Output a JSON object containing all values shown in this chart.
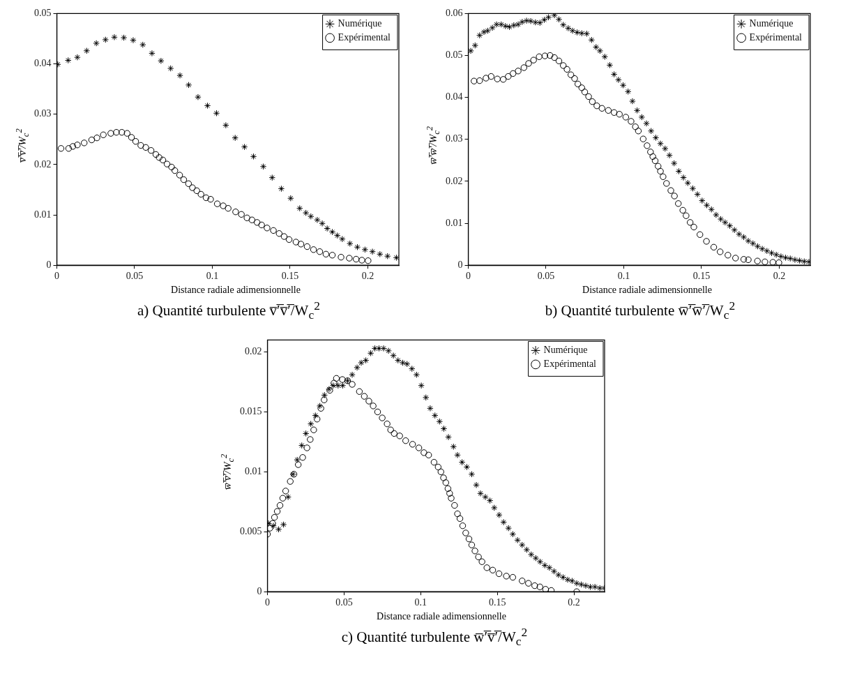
{
  "chart_data": [
    {
      "type": "scatter",
      "title": "a)  Quantité turbulente v̅′̅v̅′̅/W$_{c}$$^{2}$",
      "xlabel": "Distance radiale adimensionnelle",
      "ylabel": "v̅′̅v̅′̅/W$_{c}$$^{2}$",
      "xlim": [
        0,
        0.22
      ],
      "xticks": [
        0,
        0.05,
        0.1,
        0.15,
        0.2
      ],
      "ylim": [
        0,
        0.05
      ],
      "yticks": [
        0,
        0.01,
        0.02,
        0.03,
        0.04,
        0.05
      ],
      "grid": false,
      "legend": "top right",
      "series": [
        {
          "name": "Numérique",
          "color": "#000000",
          "marker": "cross",
          "x": [
            0.0006,
            0.0073,
            0.0132,
            0.0192,
            0.0254,
            0.0313,
            0.037,
            0.0431,
            0.0491,
            0.0553,
            0.0612,
            0.067,
            0.0732,
            0.0792,
            0.0848,
            0.0908,
            0.0969,
            0.1027,
            0.1087,
            0.1147,
            0.1207,
            0.1265,
            0.1328,
            0.1385,
            0.1444,
            0.1504,
            0.1562,
            0.1602,
            0.1634,
            0.1675,
            0.1707,
            0.1739,
            0.1772,
            0.1804,
            0.1836,
            0.1885,
            0.1933,
            0.1982,
            0.203,
            0.2078,
            0.2127,
            0.2184
          ],
          "values": [
            0.0399,
            0.0407,
            0.0413,
            0.0426,
            0.0441,
            0.0448,
            0.0453,
            0.0452,
            0.0447,
            0.0438,
            0.0421,
            0.0406,
            0.0391,
            0.0377,
            0.0358,
            0.0334,
            0.0317,
            0.0302,
            0.0278,
            0.0253,
            0.0235,
            0.0216,
            0.0196,
            0.0174,
            0.0152,
            0.0133,
            0.0113,
            0.0104,
            0.0097,
            0.009,
            0.0083,
            0.0073,
            0.0066,
            0.0059,
            0.0052,
            0.0043,
            0.0036,
            0.0031,
            0.0027,
            0.0022,
            0.0018,
            0.0015
          ]
        },
        {
          "name": "Expérimental",
          "color": "#000000",
          "marker": "circle",
          "x": [
            0.0027,
            0.0076,
            0.0103,
            0.0132,
            0.0176,
            0.0224,
            0.0258,
            0.0299,
            0.0347,
            0.0383,
            0.0418,
            0.0452,
            0.048,
            0.0507,
            0.054,
            0.0572,
            0.0606,
            0.0637,
            0.0658,
            0.0682,
            0.0709,
            0.0738,
            0.0759,
            0.079,
            0.0816,
            0.0847,
            0.0872,
            0.09,
            0.0927,
            0.096,
            0.0989,
            0.1032,
            0.107,
            0.1102,
            0.115,
            0.1187,
            0.1223,
            0.1255,
            0.1288,
            0.1317,
            0.1352,
            0.1393,
            0.143,
            0.1462,
            0.1494,
            0.1538,
            0.157,
            0.161,
            0.1651,
            0.1691,
            0.1731,
            0.1772,
            0.1828,
            0.1881,
            0.1925,
            0.1962,
            0.2002
          ],
          "values": [
            0.0232,
            0.0232,
            0.0236,
            0.0239,
            0.0243,
            0.0249,
            0.0253,
            0.0259,
            0.0262,
            0.0264,
            0.0264,
            0.0262,
            0.0254,
            0.0246,
            0.0238,
            0.0234,
            0.0228,
            0.022,
            0.0214,
            0.0209,
            0.0201,
            0.0195,
            0.0188,
            0.0179,
            0.017,
            0.0162,
            0.0154,
            0.0148,
            0.0141,
            0.0134,
            0.0131,
            0.0122,
            0.0118,
            0.0113,
            0.0106,
            0.0101,
            0.0094,
            0.009,
            0.0085,
            0.008,
            0.0074,
            0.0069,
            0.0063,
            0.0057,
            0.0051,
            0.0046,
            0.0042,
            0.0037,
            0.0031,
            0.0027,
            0.0022,
            0.002,
            0.0016,
            0.0014,
            0.0012,
            0.001,
            0.0009
          ]
        }
      ]
    },
    {
      "type": "scatter",
      "title": "b)  Quantité turbulente w̅′̅w̅′̅/W$_{c}$$^{2}$",
      "xlabel": "Distance radiale adimensionnelle",
      "ylabel": "w̅′̅w̅′̅/W$_{c}$$^{2}$",
      "xlim": [
        0,
        0.22
      ],
      "xticks": [
        0,
        0.05,
        0.1,
        0.15,
        0.2
      ],
      "ylim": [
        0,
        0.06
      ],
      "yticks": [
        0,
        0.01,
        0.02,
        0.03,
        0.04,
        0.05,
        0.06
      ],
      "grid": false,
      "legend": "top right",
      "series": [
        {
          "name": "Numérique",
          "color": "#000000",
          "marker": "cross",
          "x": [
            0.0016,
            0.0044,
            0.0073,
            0.0101,
            0.0125,
            0.0155,
            0.0182,
            0.0212,
            0.0239,
            0.0265,
            0.0293,
            0.0321,
            0.0347,
            0.0375,
            0.0402,
            0.0432,
            0.0461,
            0.0489,
            0.0516,
            0.0554,
            0.0583,
            0.0611,
            0.0643,
            0.0671,
            0.07,
            0.073,
            0.0762,
            0.0793,
            0.0822,
            0.0847,
            0.0878,
            0.091,
            0.0938,
            0.0966,
            0.0996,
            0.1028,
            0.1056,
            0.1086,
            0.1116,
            0.1146,
            0.1176,
            0.1206,
            0.1236,
            0.1266,
            0.1294,
            0.1324,
            0.1354,
            0.1384,
            0.1412,
            0.1444,
            0.1474,
            0.1504,
            0.1534,
            0.1564,
            0.1594,
            0.1624,
            0.1652,
            0.1682,
            0.1712,
            0.1742,
            0.1772,
            0.1801,
            0.1831,
            0.1861,
            0.1891,
            0.1921,
            0.1951,
            0.1981,
            0.2011,
            0.2041,
            0.2071,
            0.2101,
            0.2131,
            0.2161,
            0.2191
          ],
          "values": [
            0.0511,
            0.0524,
            0.0548,
            0.0556,
            0.0559,
            0.0566,
            0.0574,
            0.0574,
            0.057,
            0.0568,
            0.0572,
            0.0574,
            0.058,
            0.0583,
            0.0582,
            0.0579,
            0.0578,
            0.0585,
            0.0591,
            0.0596,
            0.0586,
            0.0573,
            0.0565,
            0.0559,
            0.0555,
            0.0553,
            0.0552,
            0.0537,
            0.052,
            0.0511,
            0.0497,
            0.0477,
            0.0455,
            0.0442,
            0.0429,
            0.0414,
            0.0391,
            0.0369,
            0.0353,
            0.0338,
            0.032,
            0.0304,
            0.029,
            0.0278,
            0.0262,
            0.0243,
            0.0224,
            0.0209,
            0.0196,
            0.0183,
            0.0169,
            0.0154,
            0.0143,
            0.0133,
            0.012,
            0.011,
            0.0102,
            0.0094,
            0.0084,
            0.0074,
            0.0067,
            0.0058,
            0.0052,
            0.0045,
            0.0039,
            0.0034,
            0.0029,
            0.0025,
            0.0021,
            0.0018,
            0.0016,
            0.0013,
            0.0011,
            0.0009,
            0.0008
          ]
        },
        {
          "name": "Expérimental",
          "color": "#000000",
          "marker": "circle",
          "x": [
            0.0037,
            0.0073,
            0.0114,
            0.0147,
            0.0187,
            0.0225,
            0.0257,
            0.0288,
            0.0321,
            0.0358,
            0.0388,
            0.042,
            0.0456,
            0.0493,
            0.0526,
            0.0554,
            0.0583,
            0.0611,
            0.0635,
            0.066,
            0.0684,
            0.0705,
            0.073,
            0.0749,
            0.0774,
            0.0798,
            0.0827,
            0.086,
            0.0901,
            0.0938,
            0.0972,
            0.1013,
            0.1047,
            0.1075,
            0.1094,
            0.1125,
            0.115,
            0.1172,
            0.1187,
            0.1202,
            0.1221,
            0.1236,
            0.1253,
            0.1275,
            0.1303,
            0.1326,
            0.1351,
            0.138,
            0.1401,
            0.1427,
            0.1451,
            0.149,
            0.1532,
            0.1579,
            0.162,
            0.167,
            0.1719,
            0.1772,
            0.1801,
            0.186,
            0.1908,
            0.1959,
            0.1998
          ],
          "values": [
            0.0439,
            0.044,
            0.0446,
            0.045,
            0.0444,
            0.0443,
            0.045,
            0.0457,
            0.0463,
            0.0471,
            0.0481,
            0.0489,
            0.0497,
            0.0499,
            0.05,
            0.0495,
            0.0487,
            0.0476,
            0.0467,
            0.0454,
            0.0445,
            0.0432,
            0.0423,
            0.0413,
            0.0402,
            0.039,
            0.038,
            0.0374,
            0.0369,
            0.0364,
            0.036,
            0.0353,
            0.0343,
            0.033,
            0.032,
            0.0301,
            0.0285,
            0.027,
            0.0259,
            0.0249,
            0.0236,
            0.0224,
            0.0211,
            0.0195,
            0.0178,
            0.0165,
            0.0147,
            0.0131,
            0.0118,
            0.0102,
            0.0091,
            0.0073,
            0.0057,
            0.0043,
            0.0032,
            0.0024,
            0.0017,
            0.0014,
            0.0013,
            0.001,
            0.0008,
            0.0007,
            0.0006
          ]
        }
      ]
    },
    {
      "type": "scatter",
      "title": "c)  Quantité turbulente w̅′̅v̅′̅/W$_{c}$$^{2}$",
      "xlabel": "Distance radiale adimensionnelle",
      "ylabel": "w̅′̅v̅′̅/W$_{c}$$^{2}$",
      "xlim": [
        0,
        0.22
      ],
      "xticks": [
        0,
        0.05,
        0.1,
        0.15,
        0.2
      ],
      "ylim": [
        0,
        0.021
      ],
      "yticks": [
        0,
        0.005,
        0.01,
        0.015,
        0.02
      ],
      "grid": false,
      "legend": "top right",
      "series": [
        {
          "name": "Numérique",
          "color": "#000000",
          "marker": "cross",
          "x": [
            0.0007,
            0.0039,
            0.0073,
            0.0105,
            0.0135,
            0.0167,
            0.0194,
            0.0224,
            0.0251,
            0.0283,
            0.0313,
            0.0342,
            0.0372,
            0.0402,
            0.0429,
            0.0461,
            0.0491,
            0.0523,
            0.0553,
            0.0585,
            0.0612,
            0.0642,
            0.0674,
            0.0701,
            0.0728,
            0.0758,
            0.079,
            0.0822,
            0.0852,
            0.0883,
            0.0911,
            0.0943,
            0.0973,
            0.1004,
            0.1034,
            0.1062,
            0.1093,
            0.1123,
            0.1151,
            0.1181,
            0.1214,
            0.124,
            0.127,
            0.1301,
            0.1333,
            0.1363,
            0.139,
            0.1422,
            0.1452,
            0.148,
            0.1512,
            0.1541,
            0.1573,
            0.1601,
            0.1632,
            0.1662,
            0.1692,
            0.1721,
            0.1751,
            0.1779,
            0.181,
            0.184,
            0.187,
            0.1899,
            0.1929,
            0.1959,
            0.1988,
            0.2018,
            0.2048,
            0.2077,
            0.2107,
            0.2137,
            0.2169,
            0.2199
          ],
          "values": [
            0.0057,
            0.0055,
            0.0052,
            0.0056,
            0.0079,
            0.0098,
            0.011,
            0.0122,
            0.0132,
            0.014,
            0.0147,
            0.0155,
            0.0164,
            0.0169,
            0.0172,
            0.0172,
            0.0172,
            0.0176,
            0.0181,
            0.0187,
            0.0191,
            0.0193,
            0.0199,
            0.0203,
            0.0203,
            0.0203,
            0.0201,
            0.0197,
            0.0193,
            0.0191,
            0.019,
            0.0186,
            0.0181,
            0.0172,
            0.0162,
            0.0153,
            0.0147,
            0.0142,
            0.0136,
            0.0129,
            0.0121,
            0.0114,
            0.0108,
            0.0104,
            0.0098,
            0.0089,
            0.0082,
            0.0079,
            0.0076,
            0.007,
            0.0064,
            0.0058,
            0.0053,
            0.0048,
            0.0043,
            0.0039,
            0.0035,
            0.0031,
            0.0028,
            0.0025,
            0.0022,
            0.002,
            0.0017,
            0.0014,
            0.0012,
            0.001,
            0.0009,
            0.0007,
            0.0006,
            0.0005,
            0.0004,
            0.0004,
            0.0003,
            0.0003
          ]
        },
        {
          "name": "Expérimental",
          "color": "#000000",
          "marker": "circle",
          "x": [
            0,
            0.0016,
            0.0034,
            0.0046,
            0.0064,
            0.0082,
            0.01,
            0.0119,
            0.0149,
            0.0173,
            0.0201,
            0.023,
            0.0258,
            0.0279,
            0.0302,
            0.0324,
            0.0349,
            0.037,
            0.0407,
            0.0434,
            0.045,
            0.0489,
            0.0523,
            0.0553,
            0.06,
            0.0632,
            0.0662,
            0.069,
            0.0719,
            0.0749,
            0.0781,
            0.0804,
            0.0827,
            0.0863,
            0.0902,
            0.0947,
            0.0988,
            0.1021,
            0.1052,
            0.1087,
            0.1114,
            0.1132,
            0.1149,
            0.1164,
            0.1178,
            0.1189,
            0.1199,
            0.1221,
            0.124,
            0.1256,
            0.1274,
            0.1294,
            0.1315,
            0.1333,
            0.1354,
            0.1377,
            0.14,
            0.1432,
            0.147,
            0.1511,
            0.1559,
            0.1601,
            0.1662,
            0.1703,
            0.1744,
            0.1778,
            0.1815,
            0.1852,
            0.2018
          ],
          "values": [
            0.0048,
            0.0053,
            0.0057,
            0.0062,
            0.0067,
            0.0072,
            0.0078,
            0.0084,
            0.0092,
            0.0098,
            0.0106,
            0.0112,
            0.012,
            0.0127,
            0.0135,
            0.0144,
            0.0153,
            0.016,
            0.0168,
            0.0174,
            0.0178,
            0.0177,
            0.0176,
            0.0173,
            0.0167,
            0.0163,
            0.0159,
            0.0155,
            0.015,
            0.0145,
            0.014,
            0.0135,
            0.0132,
            0.013,
            0.0126,
            0.0123,
            0.012,
            0.0116,
            0.0114,
            0.0108,
            0.0104,
            0.01,
            0.0095,
            0.0091,
            0.0086,
            0.0082,
            0.0078,
            0.0072,
            0.0065,
            0.0061,
            0.0055,
            0.0049,
            0.0044,
            0.0039,
            0.0034,
            0.0029,
            0.0025,
            0.002,
            0.0018,
            0.0015,
            0.0013,
            0.0012,
            0.0009,
            0.0007,
            0.0005,
            0.0004,
            0.0002,
            0.0001,
            0
          ]
        }
      ]
    }
  ]
}
